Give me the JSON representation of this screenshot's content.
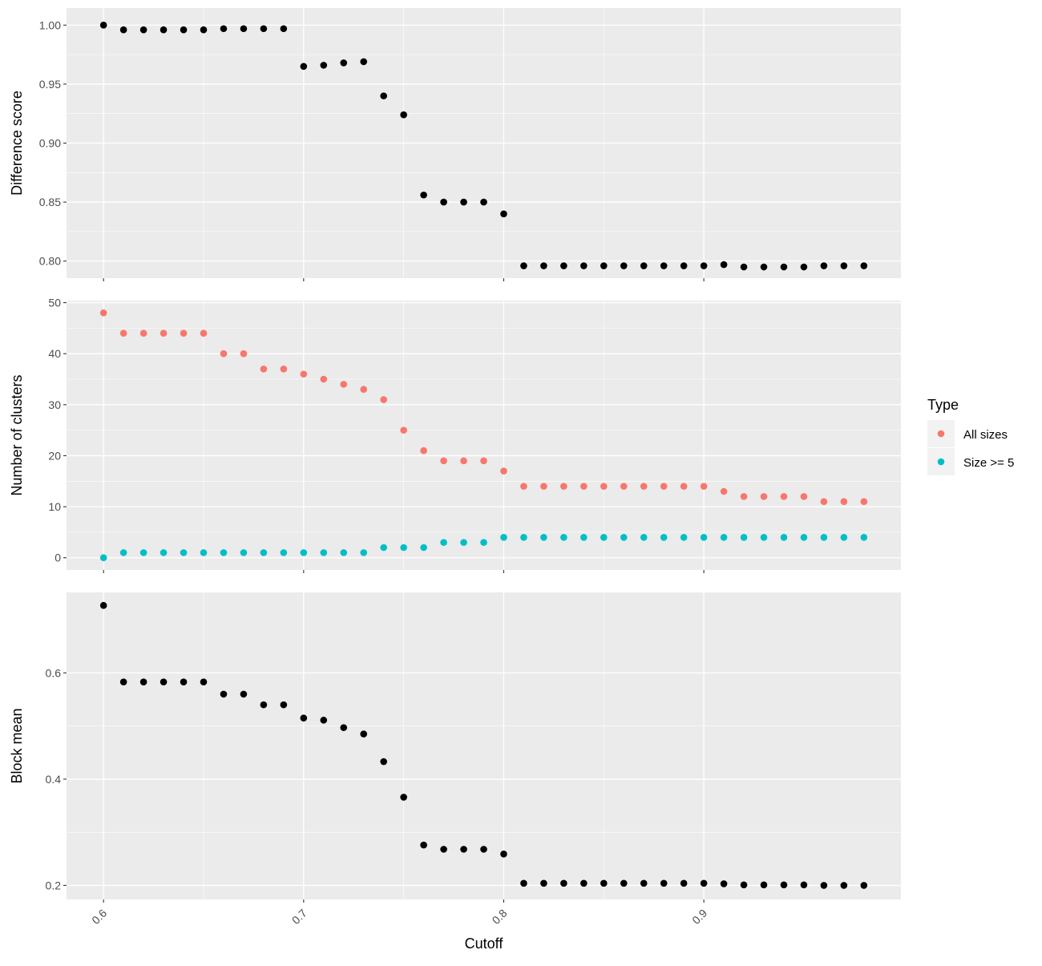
{
  "chart_data": {
    "type": "scatter",
    "x_label": "Cutoff",
    "x_ticks": [
      0.6,
      0.7,
      0.8,
      0.9
    ],
    "x_range": [
      0.5815,
      0.9985
    ],
    "x": [
      0.6,
      0.61,
      0.62,
      0.63,
      0.64,
      0.65,
      0.66,
      0.67,
      0.68,
      0.69,
      0.7,
      0.71,
      0.72,
      0.73,
      0.74,
      0.75,
      0.76,
      0.77,
      0.78,
      0.79,
      0.8,
      0.81,
      0.82,
      0.83,
      0.84,
      0.85,
      0.86,
      0.87,
      0.88,
      0.89,
      0.9,
      0.91,
      0.92,
      0.93,
      0.94,
      0.95,
      0.96,
      0.97,
      0.98
    ],
    "background": "#EBEBEB",
    "grid": true,
    "legend": {
      "title": "Type",
      "placement": "right",
      "entries": [
        {
          "label": "All sizes",
          "color": "#F8766D"
        },
        {
          "label": "Size >= 5",
          "color": "#00BFC4"
        }
      ]
    },
    "panels": [
      {
        "ylabel": "Difference score",
        "ylim": [
          0.7855,
          1.0145
        ],
        "yticks": [
          0.8,
          0.85,
          0.9,
          0.95,
          1.0
        ],
        "ytick_labels": [
          "0.80",
          "0.85",
          "0.90",
          "0.95",
          "1.00"
        ],
        "series": [
          {
            "color": "#000000",
            "values": [
              1.0,
              0.996,
              0.996,
              0.996,
              0.996,
              0.996,
              0.997,
              0.997,
              0.997,
              0.997,
              0.965,
              0.966,
              0.968,
              0.969,
              0.94,
              0.924,
              0.856,
              0.85,
              0.85,
              0.85,
              0.84,
              0.796,
              0.796,
              0.796,
              0.796,
              0.796,
              0.796,
              0.796,
              0.796,
              0.796,
              0.796,
              0.797,
              0.795,
              0.795,
              0.795,
              0.795,
              0.796,
              0.796,
              0.796
            ]
          }
        ]
      },
      {
        "ylabel": "Number of clusters",
        "ylim": [
          -2.4,
          50.4
        ],
        "yticks": [
          0,
          10,
          20,
          30,
          40,
          50
        ],
        "ytick_labels": [
          "0",
          "10",
          "20",
          "30",
          "40",
          "50"
        ],
        "series": [
          {
            "name": "All sizes",
            "color": "#F8766D",
            "values": [
              48,
              44,
              44,
              44,
              44,
              44,
              40,
              40,
              37,
              37,
              36,
              35,
              34,
              33,
              31,
              25,
              21,
              19,
              19,
              19,
              17,
              14,
              14,
              14,
              14,
              14,
              14,
              14,
              14,
              14,
              14,
              13,
              12,
              12,
              12,
              12,
              11,
              11,
              11
            ]
          },
          {
            "name": "Size >= 5",
            "color": "#00BFC4",
            "values": [
              0,
              1,
              1,
              1,
              1,
              1,
              1,
              1,
              1,
              1,
              1,
              1,
              1,
              1,
              2,
              2,
              2,
              3,
              3,
              3,
              4,
              4,
              4,
              4,
              4,
              4,
              4,
              4,
              4,
              4,
              4,
              4,
              4,
              4,
              4,
              4,
              4,
              4,
              4
            ]
          }
        ]
      },
      {
        "ylabel": "Block mean",
        "ylim": [
          0.1735,
          0.7515
        ],
        "yticks": [
          0.2,
          0.4,
          0.6
        ],
        "ytick_labels": [
          "0.2",
          "0.4",
          "0.6"
        ],
        "series": [
          {
            "color": "#000000",
            "values": [
              0.727,
              0.583,
              0.583,
              0.583,
              0.583,
              0.583,
              0.56,
              0.56,
              0.54,
              0.54,
              0.515,
              0.511,
              0.497,
              0.485,
              0.433,
              0.366,
              0.276,
              0.268,
              0.268,
              0.268,
              0.259,
              0.204,
              0.204,
              0.204,
              0.204,
              0.204,
              0.204,
              0.204,
              0.204,
              0.204,
              0.204,
              0.203,
              0.201,
              0.201,
              0.201,
              0.201,
              0.2,
              0.2,
              0.2
            ]
          }
        ]
      }
    ]
  }
}
